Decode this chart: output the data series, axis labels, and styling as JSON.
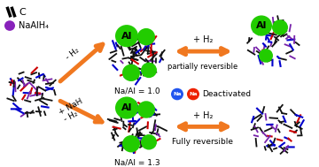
{
  "bg_color": "#ffffff",
  "orange": "#F07820",
  "green": "#22CC00",
  "blue_na": "#2255EE",
  "red_na": "#EE2200",
  "purple": "#8822BB",
  "stick_colors": [
    "#000000",
    "#0000CC",
    "#CC0000",
    "#7722AA"
  ],
  "stick_weights": [
    0.55,
    0.22,
    0.1,
    0.13
  ],
  "c_label": "C",
  "naalh4_label": "NaAlH₄",
  "al_label": "Al",
  "na_al_10": "Na/Al = 1.0",
  "na_al_13": "Na/Al = 1.3",
  "partial_rev": "partially reversible",
  "fully_rev": "Fully reversible",
  "deactivated": "Deactivated",
  "plus_h2": "+ H₂",
  "minus_h2": "- H₂",
  "plus_nah": "+ NaH"
}
